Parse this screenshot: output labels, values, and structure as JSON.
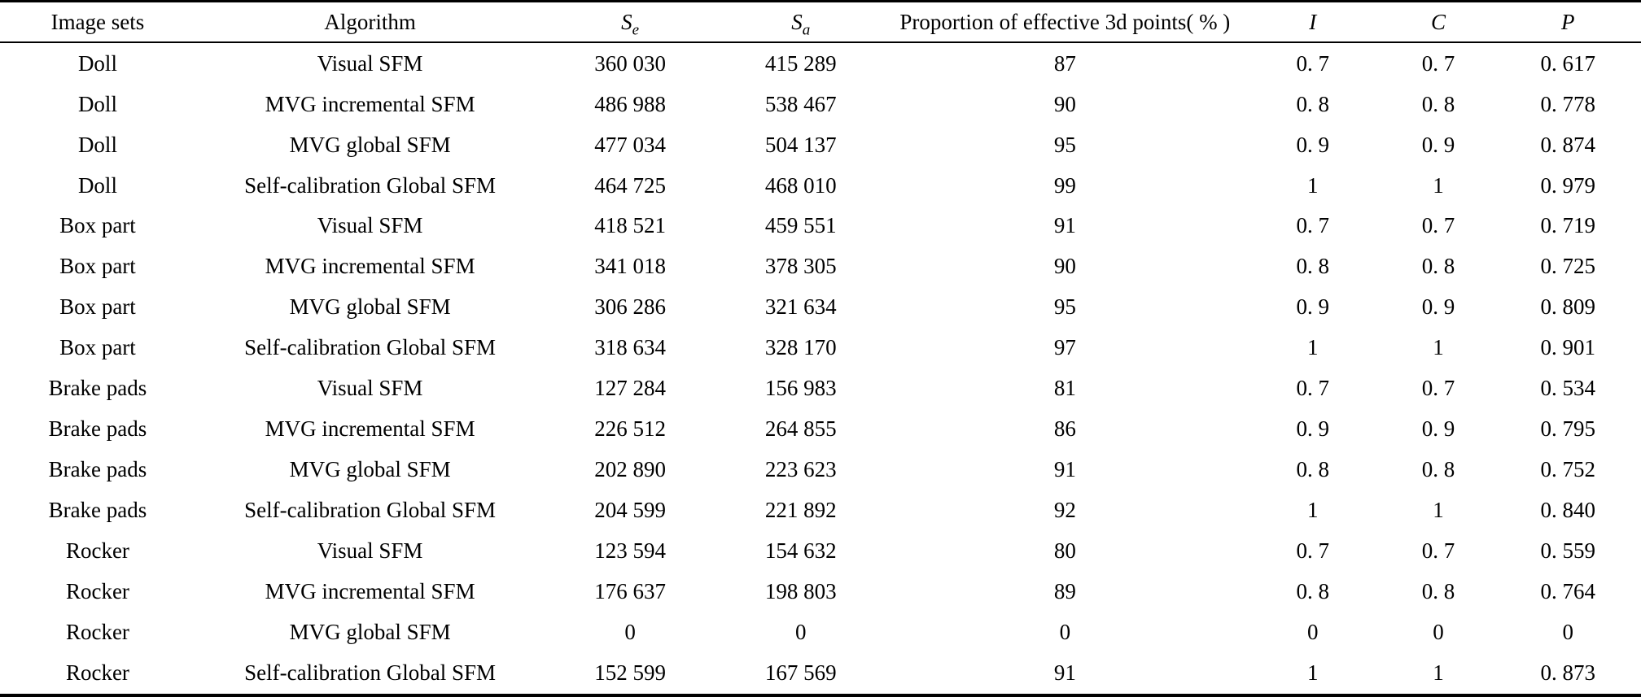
{
  "table": {
    "header": {
      "image_sets": "Image sets",
      "algorithm": "Algorithm",
      "se": {
        "base": "S",
        "sub": "e"
      },
      "sa": {
        "base": "S",
        "sub": "a"
      },
      "proportion": "Proportion of effective 3d points( % )",
      "i": "I",
      "c": "C",
      "p": "P"
    },
    "rows": [
      [
        "Doll",
        "Visual SFM",
        "360 030",
        "415 289",
        "87",
        "0. 7",
        "0. 7",
        "0. 617"
      ],
      [
        "Doll",
        "MVG incremental SFM",
        "486 988",
        "538 467",
        "90",
        "0. 8",
        "0. 8",
        "0. 778"
      ],
      [
        "Doll",
        "MVG global SFM",
        "477 034",
        "504 137",
        "95",
        "0. 9",
        "0. 9",
        "0. 874"
      ],
      [
        "Doll",
        "Self-calibration Global SFM",
        "464 725",
        "468 010",
        "99",
        "1",
        "1",
        "0. 979"
      ],
      [
        "Box part",
        "Visual SFM",
        "418 521",
        "459 551",
        "91",
        "0. 7",
        "0. 7",
        "0. 719"
      ],
      [
        "Box part",
        "MVG incremental SFM",
        "341 018",
        "378 305",
        "90",
        "0. 8",
        "0. 8",
        "0. 725"
      ],
      [
        "Box part",
        "MVG global SFM",
        "306 286",
        "321 634",
        "95",
        "0. 9",
        "0. 9",
        "0. 809"
      ],
      [
        "Box part",
        "Self-calibration Global SFM",
        "318 634",
        "328 170",
        "97",
        "1",
        "1",
        "0. 901"
      ],
      [
        "Brake pads",
        "Visual SFM",
        "127 284",
        "156 983",
        "81",
        "0. 7",
        "0. 7",
        "0. 534"
      ],
      [
        "Brake pads",
        "MVG incremental SFM",
        "226 512",
        "264 855",
        "86",
        "0. 9",
        "0. 9",
        "0. 795"
      ],
      [
        "Brake pads",
        "MVG global SFM",
        "202 890",
        "223 623",
        "91",
        "0. 8",
        "0. 8",
        "0. 752"
      ],
      [
        "Brake pads",
        "Self-calibration Global SFM",
        "204 599",
        "221 892",
        "92",
        "1",
        "1",
        "0. 840"
      ],
      [
        "Rocker",
        "Visual SFM",
        "123 594",
        "154 632",
        "80",
        "0. 7",
        "0. 7",
        "0. 559"
      ],
      [
        "Rocker",
        "MVG incremental SFM",
        "176 637",
        "198 803",
        "89",
        "0. 8",
        "0. 8",
        "0. 764"
      ],
      [
        "Rocker",
        "MVG global SFM",
        "0",
        "0",
        "0",
        "0",
        "0",
        "0"
      ],
      [
        "Rocker",
        "Self-calibration Global SFM",
        "152 599",
        "167 569",
        "91",
        "1",
        "1",
        "0. 873"
      ]
    ]
  }
}
